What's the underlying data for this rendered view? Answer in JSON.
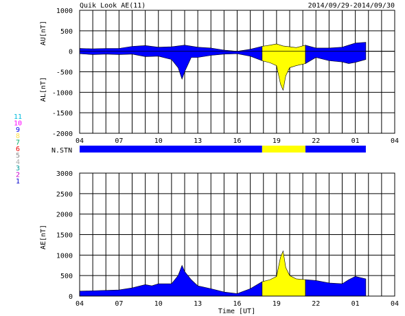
{
  "header": {
    "title": "Quik Look AE(11)",
    "date_range": "2014/09/29-2014/09/30"
  },
  "colors": {
    "station_11": "#00bbdd",
    "station_10": "#ff00ff",
    "station_9": "#0000ee",
    "station_8": "#ffe14d",
    "station_7": "#00aa66",
    "station_6": "#ee0000",
    "station_5": "#888888",
    "station_4": "#aaaaaa",
    "station_3": "#009999",
    "station_2": "#cc00cc",
    "station_1": "#0000cc",
    "blue_fill": "#0000ff",
    "yellow_fill": "#ffff00"
  },
  "station_legend": [
    "11",
    "10",
    "9",
    "8",
    "7",
    "6",
    "5",
    "4",
    "3",
    "2",
    "1"
  ],
  "station_bar": {
    "label": "N.STN",
    "segments": [
      {
        "start_h": 4.0,
        "end_h": 17.9,
        "color": "blue"
      },
      {
        "start_h": 17.9,
        "end_h": 21.2,
        "color": "yellow"
      },
      {
        "start_h": 21.2,
        "end_h": 25.8,
        "color": "blue"
      }
    ]
  },
  "xaxis": {
    "ticks": [
      "04",
      "07",
      "10",
      "13",
      "16",
      "19",
      "22",
      "01",
      "04"
    ],
    "start_h": 4,
    "end_h": 28,
    "label": "Time [UT]"
  },
  "chart_data": [
    {
      "type": "area",
      "ylabel_top": "AU[nT]",
      "ylabel_bottom": "AL[nT]",
      "ylim": [
        -2000,
        1000
      ],
      "yticks": [
        "1000",
        "500",
        "0",
        "-500",
        "-1000",
        "-1500",
        "-2000"
      ],
      "grid": true,
      "series": [
        {
          "x": [
            4.0,
            5.0,
            6.0,
            7.0,
            8.0,
            9.0,
            10.0,
            11.0,
            12.0,
            13.0,
            14.0,
            15.0,
            16.0,
            17.0,
            17.9,
            18.5,
            19.0,
            19.5,
            20.0,
            20.5,
            21.2,
            22.0,
            23.0,
            24.0,
            24.5,
            25.0,
            25.8
          ],
          "values": [
            70,
            60,
            70,
            70,
            120,
            140,
            100,
            110,
            150,
            100,
            80,
            30,
            0,
            50,
            120,
            150,
            180,
            130,
            110,
            90,
            150,
            80,
            80,
            100,
            150,
            200,
            220
          ]
        },
        {
          "x": [
            4.0,
            5.0,
            6.0,
            7.0,
            8.0,
            9.0,
            10.0,
            11.0,
            11.5,
            11.8,
            12.0,
            12.5,
            13.0,
            14.0,
            15.0,
            16.0,
            17.0,
            17.9,
            18.5,
            19.0,
            19.3,
            19.5,
            19.7,
            20.0,
            20.5,
            21.2,
            22.0,
            23.0,
            24.0,
            24.5,
            25.0,
            25.8
          ],
          "values": [
            -60,
            -80,
            -70,
            -80,
            -70,
            -130,
            -120,
            -200,
            -400,
            -680,
            -500,
            -150,
            -150,
            -100,
            -70,
            -60,
            -120,
            -230,
            -280,
            -350,
            -800,
            -950,
            -600,
            -400,
            -350,
            -300,
            -150,
            -230,
            -260,
            -300,
            -270,
            -200
          ]
        }
      ]
    },
    {
      "type": "area",
      "ylabel": "AE[nT]",
      "ylim": [
        0,
        3000
      ],
      "yticks": [
        "3000",
        "2500",
        "2000",
        "1500",
        "1000",
        "500",
        "0"
      ],
      "grid": true,
      "series": [
        {
          "x": [
            4.0,
            5.0,
            6.0,
            7.0,
            8.0,
            9.0,
            9.5,
            10.0,
            11.0,
            11.5,
            11.8,
            12.0,
            12.5,
            13.0,
            14.0,
            15.0,
            16.0,
            17.0,
            17.9,
            18.5,
            19.0,
            19.3,
            19.5,
            19.7,
            20.0,
            20.5,
            21.2,
            22.0,
            23.0,
            24.0,
            24.5,
            25.0,
            25.8
          ],
          "values": [
            120,
            130,
            140,
            150,
            200,
            280,
            250,
            300,
            300,
            500,
            750,
            600,
            400,
            250,
            180,
            100,
            60,
            180,
            350,
            400,
            480,
            950,
            1100,
            700,
            500,
            420,
            400,
            380,
            320,
            300,
            400,
            480,
            420
          ]
        }
      ]
    }
  ]
}
